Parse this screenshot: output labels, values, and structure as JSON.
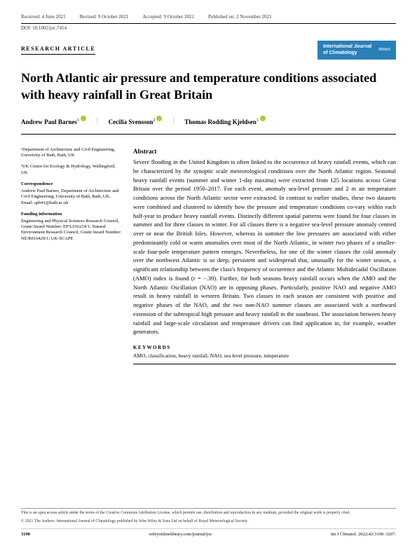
{
  "header": {
    "received": "Received: 4 June 2021",
    "revised": "Revised: 9 October 2021",
    "accepted": "Accepted: 9 October 2021",
    "published": "Published on: 2 November 2021",
    "doi": "DOI: 10.1002/joc.7414"
  },
  "article_type": "RESEARCH ARTICLE",
  "journal_badge": {
    "line1": "International Journal",
    "line2": "of Climatology",
    "society": "RMetS"
  },
  "title": "North Atlantic air pressure and temperature conditions associated with heavy rainfall in Great Britain",
  "authors": [
    {
      "name": "Andrew Paul Barnes",
      "sup": "1"
    },
    {
      "name": "Cecilia Svensson",
      "sup": "2"
    },
    {
      "name": "Thomas Rodding Kjeldsen",
      "sup": "1"
    }
  ],
  "affiliations": [
    "¹Department of Architecture and Civil Engineering, University of Bath, Bath, UK",
    "²UK Centre for Ecology & Hydrology, Wallingford, UK"
  ],
  "correspondence": {
    "head": "Correspondence",
    "text": "Andrew Paul Barnes, Department of Architecture and Civil Engineering, University of Bath, Bath, UK.",
    "email": "Email: apb41@bath.ac.uk"
  },
  "funding": {
    "head": "Funding information",
    "text": "Engineering and Physical Sciences Research Council, Grant/Award Number: EP/L016214/1; Natural Environment Research Council, Grant/Award Number: NE/R016429/1; UK-SCAPE"
  },
  "abstract": {
    "head": "Abstract",
    "text": "Severe flooding in the United Kingdom is often linked to the occurrence of heavy rainfall events, which can be characterized by the synoptic scale meteorological conditions over the North Atlantic region. Seasonal heavy rainfall events (summer and winter 1-day maxima) were extracted from 125 locations across Great Britain over the period 1950–2017. For each event, anomaly sea-level pressure and 2 m air temperature conditions across the North Atlantic sector were extracted. In contrast to earlier studies, these two datasets were combined and clustered to identify how the pressure and temperature conditions co-vary within each half-year to produce heavy rainfall events. Distinctly different spatial patterns were found for four classes in summer and for three classes in winter. For all classes there is a negative sea-level pressure anomaly centred over or near the British Isles. However, whereas in summer the low pressures are associated with either predominantly cold or warm anomalies over most of the North Atlantic, in winter two phases of a smaller-scale four-pole temperature pattern emerges. Nevertheless, for one of the winter classes the cold anomaly over the northwest Atlantic is so deep, persistent and widespread that, unusually for the winter season, a significant relationship between the class's frequency of occurrence and the Atlantic Multidecadal Oscillation (AMO) index is found (r = −.39). Further, for both seasons heavy rainfall occurs when the AMO and the North Atlantic Oscillation (NAO) are in opposing phases. Particularly, positive NAO and negative AMO result in heavy rainfall in western Britain. Two classes in each season are consistent with positive and negative phases of the NAO, and the two non-NAO summer classes are associated with a northward extension of the subtropical high pressure and heavy rainfall in the southeast. The association between heavy rainfall and large-scale circulation and temperature drivers can find application in, for example, weather generators."
  },
  "keywords": {
    "head": "KEYWORDS",
    "text": "AMO, classification, heavy rainfall, NAO, sea level pressure, temperature"
  },
  "footer": {
    "license": "This is an open access article under the terms of the Creative Commons Attribution License, which permits use, distribution and reproduction in any medium, provided the original work is properly cited.",
    "copyright": "© 2021 The Authors. International Journal of Climatology published by John Wiley & Sons Ltd on behalf of Royal Meteorological Society.",
    "page": "3190",
    "url": "wileyonlinelibrary.com/journal/joc",
    "citation": "Int J Climatol. 2022;42:3190–3207."
  }
}
